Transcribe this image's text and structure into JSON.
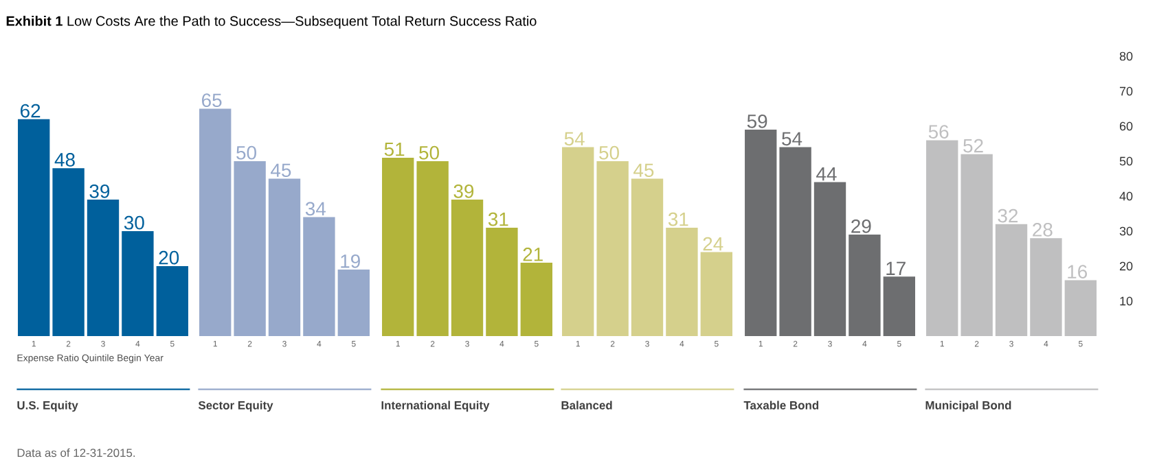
{
  "chart_data": [
    {
      "type": "bar",
      "title": "**Exhibit 1** Low Costs Are the Path to Success—Subsequent Total Return Success Ratio",
      "xlabel": "U.S. Equity",
      "categories": [
        "1",
        "2",
        "3",
        "4",
        "5"
      ],
      "values": [
        62,
        48,
        39,
        30,
        20
      ],
      "color": "#00609c",
      "ylim": [
        0,
        80
      ],
      "yticks": [
        10,
        20,
        30,
        40,
        50,
        60,
        70,
        80
      ],
      "tick_labels": "x",
      "data_labels": true,
      "annotations": [
        "Expense Ratio Quintile Begin Year",
        "Data as of 12-31-2015."
      ]
    },
    {
      "type": "bar",
      "xlabel": "Sector Equity",
      "categories": [
        "1",
        "2",
        "3",
        "4",
        "5"
      ],
      "values": [
        65,
        50,
        45,
        34,
        19
      ],
      "color": "#97a9cb",
      "ylim": [
        0,
        80
      ],
      "yticks": [
        10,
        20,
        30,
        40,
        50,
        60,
        70,
        80
      ],
      "tick_labels": "x",
      "data_labels": true
    },
    {
      "type": "bar",
      "xlabel": "International Equity",
      "categories": [
        "1",
        "2",
        "3",
        "4",
        "5"
      ],
      "values": [
        51,
        50,
        39,
        31,
        21
      ],
      "color": "#b2b43a",
      "ylim": [
        0,
        80
      ],
      "yticks": [
        10,
        20,
        30,
        40,
        50,
        60,
        70,
        80
      ],
      "tick_labels": "x",
      "data_labels": true
    },
    {
      "type": "bar",
      "xlabel": "Balanced",
      "categories": [
        "1",
        "2",
        "3",
        "4",
        "5"
      ],
      "values": [
        54,
        50,
        45,
        31,
        24
      ],
      "color": "#d5d08c",
      "ylim": [
        0,
        80
      ],
      "yticks": [
        10,
        20,
        30,
        40,
        50,
        60,
        70,
        80
      ],
      "tick_labels": "x",
      "data_labels": true
    },
    {
      "type": "bar",
      "xlabel": "Taxable Bond",
      "categories": [
        "1",
        "2",
        "3",
        "4",
        "5"
      ],
      "values": [
        59,
        54,
        44,
        29,
        17
      ],
      "color": "#6d6e70",
      "ylim": [
        0,
        80
      ],
      "yticks": [
        10,
        20,
        30,
        40,
        50,
        60,
        70,
        80
      ],
      "tick_labels": "x",
      "data_labels": true
    },
    {
      "type": "bar",
      "xlabel": "Municipal Bond",
      "categories": [
        "1",
        "2",
        "3",
        "4",
        "5"
      ],
      "values": [
        56,
        52,
        32,
        28,
        16
      ],
      "color": "#bfbfc0",
      "ylim": [
        0,
        80
      ],
      "yticks": [
        10,
        20,
        30,
        40,
        50,
        60,
        70,
        80
      ],
      "data_labels": true
    }
  ]
}
